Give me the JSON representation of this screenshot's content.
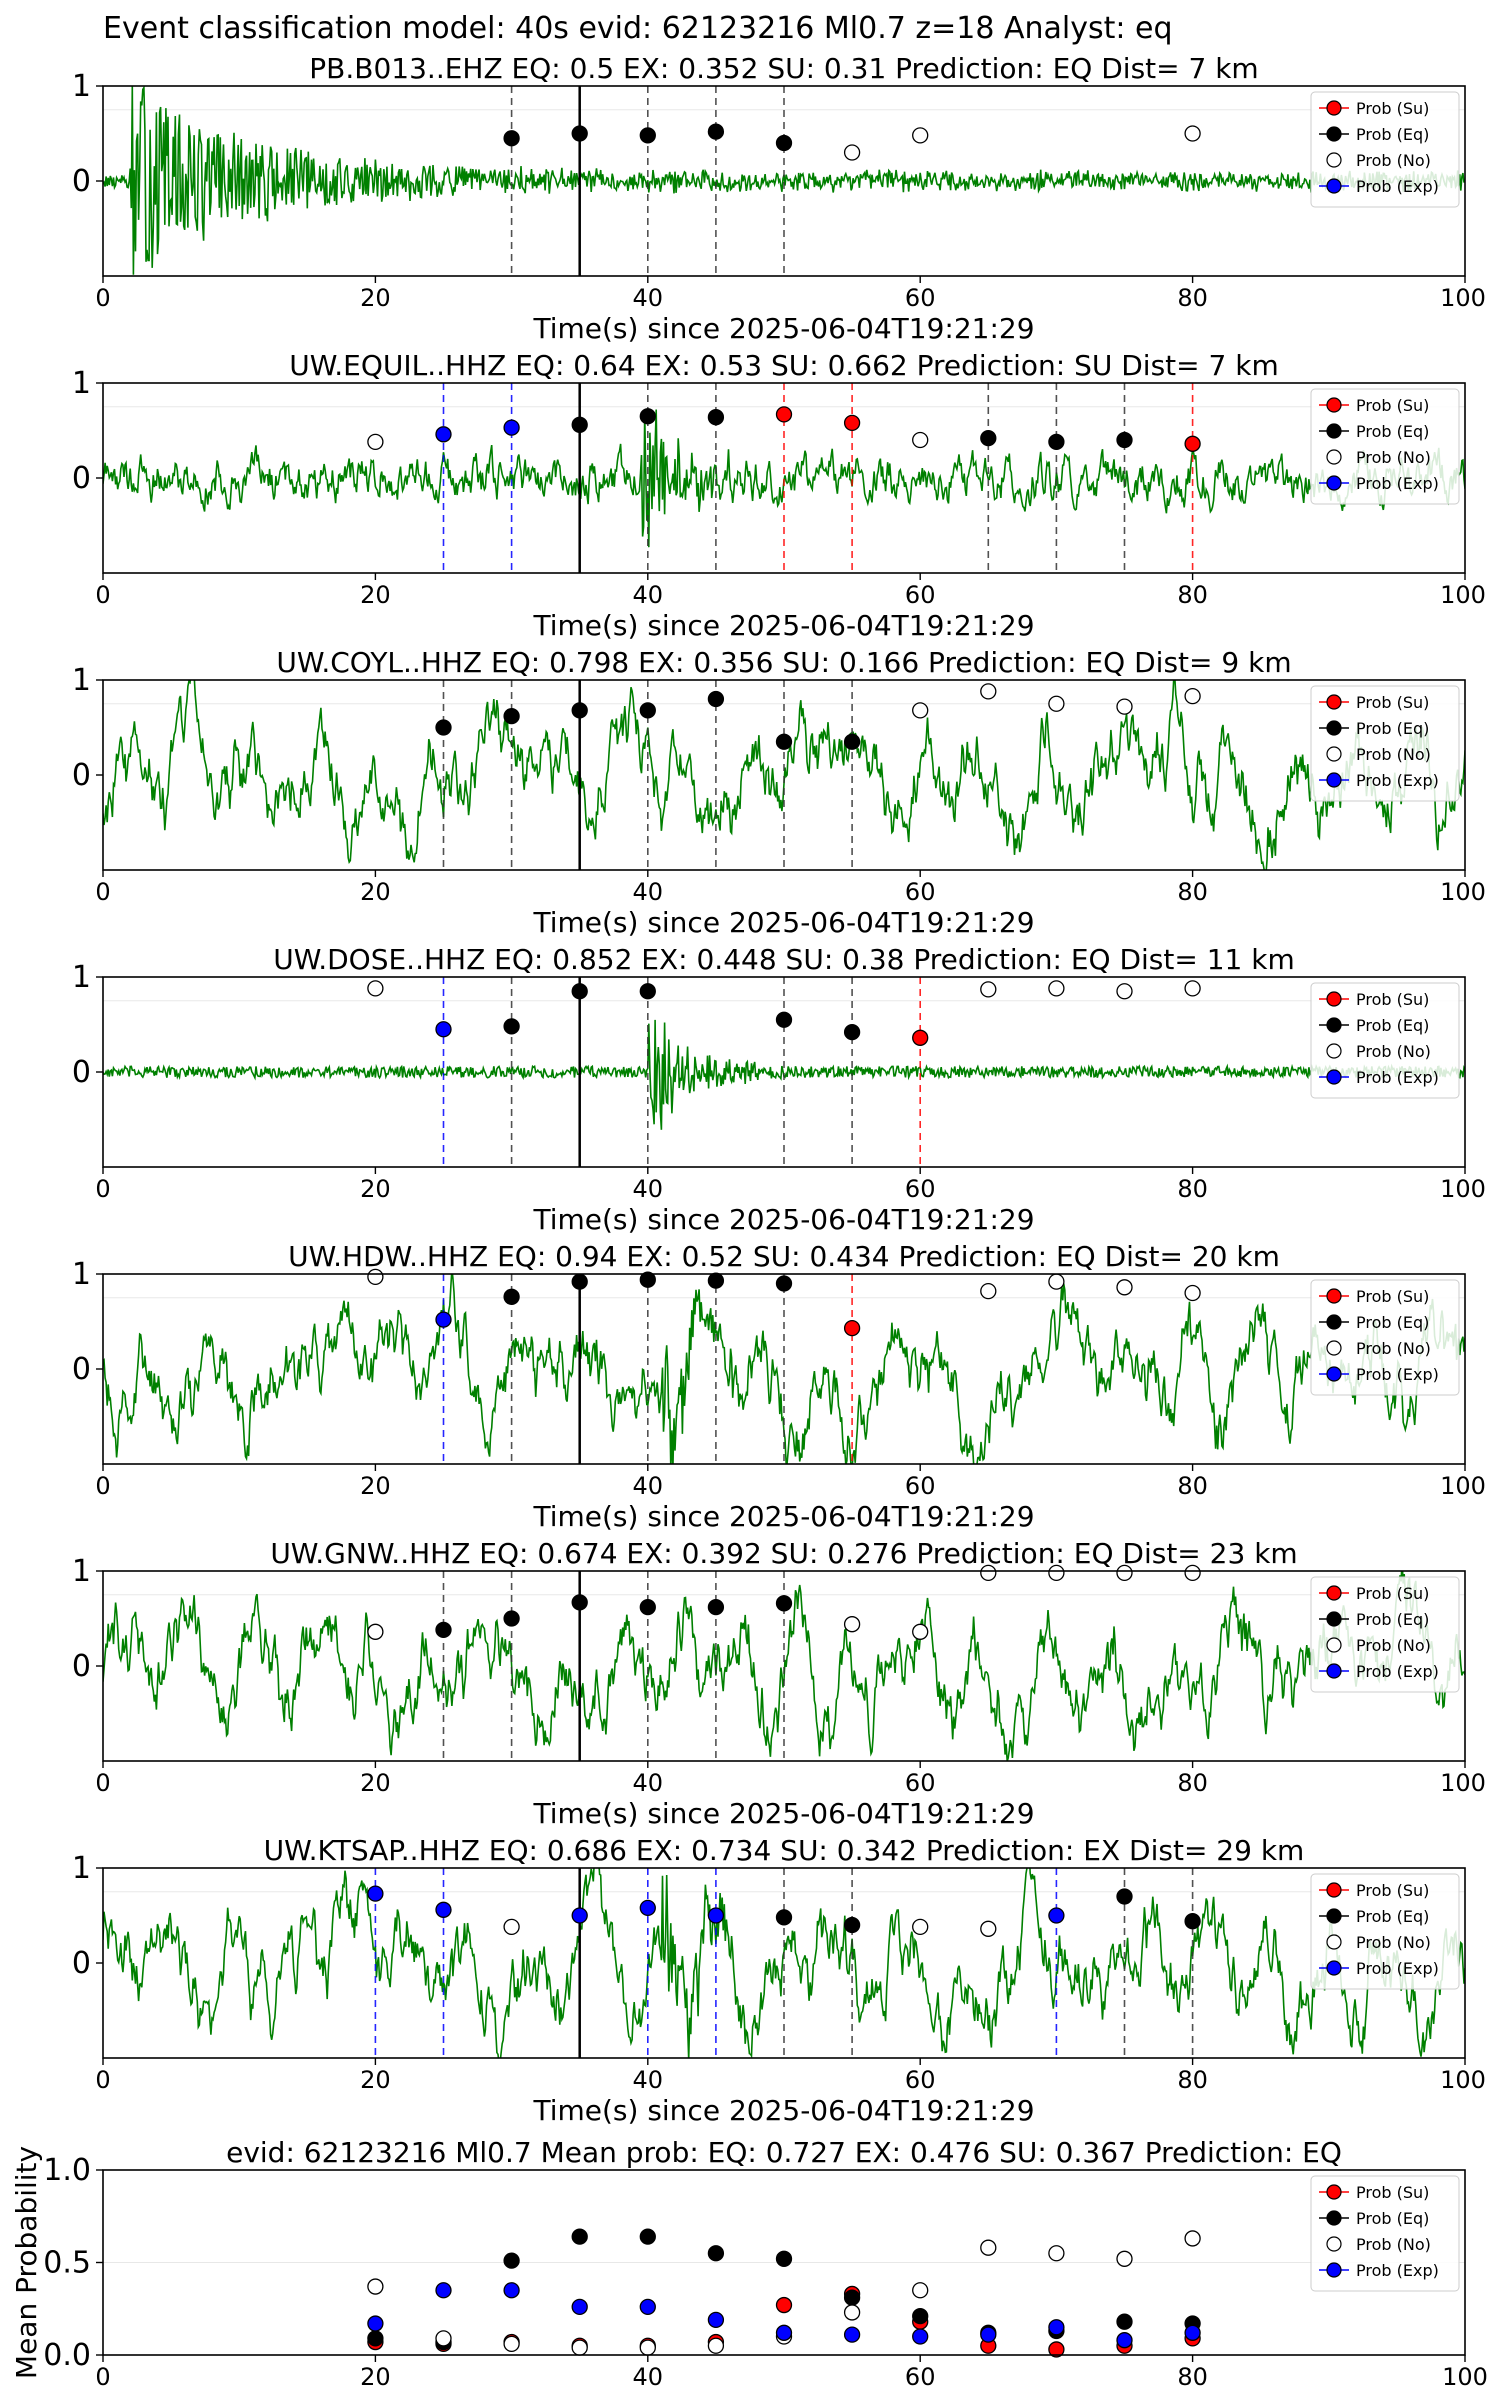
{
  "suptitle": "Event classification model: 40s evid: 62123216 Ml0.7 z=18 Analyst: eq",
  "colors": {
    "waveform": "#008000",
    "su": "#ff0000",
    "eq": "#000000",
    "no": "#ffffff",
    "exp": "#0000ff"
  },
  "legend": {
    "entries": [
      "Prob (Su)",
      "Prob (Eq)",
      "Prob (No)",
      "Prob (Exp)"
    ],
    "placement": "upper-right"
  },
  "chart_data": [
    {
      "type": "scatter",
      "title": "PB.B013..EHZ   EQ: 0.5  EX: 0.352  SU: 0.31   Prediction: EQ    Dist= 7 km",
      "xlabel": "Time(s) since 2025-06-04T19:21:29",
      "xlim": [
        0,
        100
      ],
      "ylim": [
        -1,
        1
      ],
      "xticks": [
        "0",
        "20",
        "40",
        "60",
        "80"
      ],
      "yticks": [
        "1",
        "0"
      ],
      "waveform": "emergent",
      "pick_time": 35,
      "points": [
        {
          "x": 30,
          "y": 0.45,
          "cls": "eq"
        },
        {
          "x": 35,
          "y": 0.5,
          "cls": "eq"
        },
        {
          "x": 40,
          "y": 0.48,
          "cls": "eq"
        },
        {
          "x": 45,
          "y": 0.52,
          "cls": "eq"
        },
        {
          "x": 50,
          "y": 0.4,
          "cls": "eq"
        },
        {
          "x": 55,
          "y": 0.3,
          "cls": "no"
        },
        {
          "x": 60,
          "y": 0.48,
          "cls": "no"
        },
        {
          "x": 80,
          "y": 0.5,
          "cls": "no"
        }
      ]
    },
    {
      "type": "scatter",
      "title": "UW.EQUIL..HHZ   EQ: 0.64  EX: 0.53  SU: 0.662   Prediction: SU    Dist= 7 km",
      "xlabel": "Time(s) since 2025-06-04T19:21:29",
      "xlim": [
        0,
        100
      ],
      "ylim": [
        -1,
        1
      ],
      "xticks": [
        "0",
        "20",
        "40",
        "60",
        "80"
      ],
      "yticks": [
        "1",
        "0"
      ],
      "waveform": "noise",
      "pick_time": 35,
      "points": [
        {
          "x": 20,
          "y": 0.38,
          "cls": "no"
        },
        {
          "x": 25,
          "y": 0.46,
          "cls": "exp"
        },
        {
          "x": 30,
          "y": 0.53,
          "cls": "exp"
        },
        {
          "x": 35,
          "y": 0.56,
          "cls": "eq"
        },
        {
          "x": 40,
          "y": 0.65,
          "cls": "eq"
        },
        {
          "x": 45,
          "y": 0.64,
          "cls": "eq"
        },
        {
          "x": 50,
          "y": 0.67,
          "cls": "su"
        },
        {
          "x": 55,
          "y": 0.58,
          "cls": "su"
        },
        {
          "x": 60,
          "y": 0.4,
          "cls": "no"
        },
        {
          "x": 65,
          "y": 0.42,
          "cls": "eq"
        },
        {
          "x": 70,
          "y": 0.38,
          "cls": "eq"
        },
        {
          "x": 75,
          "y": 0.4,
          "cls": "eq"
        },
        {
          "x": 80,
          "y": 0.36,
          "cls": "su"
        }
      ]
    },
    {
      "type": "scatter",
      "title": "UW.COYL..HHZ   EQ: 0.798  EX: 0.356  SU: 0.166   Prediction: EQ    Dist= 9 km",
      "xlabel": "Time(s) since 2025-06-04T19:21:29",
      "xlim": [
        0,
        100
      ],
      "ylim": [
        -1,
        1
      ],
      "xticks": [
        "0",
        "20",
        "40",
        "60",
        "80"
      ],
      "yticks": [
        "1",
        "0"
      ],
      "waveform": "lowfreq",
      "pick_time": 35,
      "points": [
        {
          "x": 25,
          "y": 0.5,
          "cls": "eq"
        },
        {
          "x": 30,
          "y": 0.62,
          "cls": "eq"
        },
        {
          "x": 35,
          "y": 0.68,
          "cls": "eq"
        },
        {
          "x": 40,
          "y": 0.68,
          "cls": "eq"
        },
        {
          "x": 45,
          "y": 0.8,
          "cls": "eq"
        },
        {
          "x": 50,
          "y": 0.35,
          "cls": "eq"
        },
        {
          "x": 55,
          "y": 0.35,
          "cls": "eq"
        },
        {
          "x": 60,
          "y": 0.68,
          "cls": "no"
        },
        {
          "x": 65,
          "y": 0.88,
          "cls": "no"
        },
        {
          "x": 70,
          "y": 0.75,
          "cls": "no"
        },
        {
          "x": 75,
          "y": 0.72,
          "cls": "no"
        },
        {
          "x": 80,
          "y": 0.83,
          "cls": "no"
        }
      ]
    },
    {
      "type": "scatter",
      "title": "UW.DOSE..HHZ   EQ: 0.852  EX: 0.448  SU: 0.38   Prediction: EQ    Dist= 11 km",
      "xlabel": "Time(s) since 2025-06-04T19:21:29",
      "xlim": [
        0,
        100
      ],
      "ylim": [
        -1,
        1
      ],
      "xticks": [
        "0",
        "20",
        "40",
        "60",
        "80"
      ],
      "yticks": [
        "1",
        "0"
      ],
      "waveform": "quiet_event",
      "pick_time": 35,
      "points": [
        {
          "x": 20,
          "y": 0.88,
          "cls": "no"
        },
        {
          "x": 25,
          "y": 0.45,
          "cls": "exp"
        },
        {
          "x": 30,
          "y": 0.48,
          "cls": "eq"
        },
        {
          "x": 35,
          "y": 0.85,
          "cls": "eq"
        },
        {
          "x": 40,
          "y": 0.85,
          "cls": "eq"
        },
        {
          "x": 50,
          "y": 0.55,
          "cls": "eq"
        },
        {
          "x": 55,
          "y": 0.42,
          "cls": "eq"
        },
        {
          "x": 60,
          "y": 0.36,
          "cls": "su"
        },
        {
          "x": 65,
          "y": 0.87,
          "cls": "no"
        },
        {
          "x": 70,
          "y": 0.88,
          "cls": "no"
        },
        {
          "x": 75,
          "y": 0.85,
          "cls": "no"
        },
        {
          "x": 80,
          "y": 0.88,
          "cls": "no"
        }
      ]
    },
    {
      "type": "scatter",
      "title": "UW.HDW..HHZ   EQ: 0.94  EX: 0.52  SU: 0.434   Prediction: EQ    Dist= 20 km",
      "xlabel": "Time(s) since 2025-06-04T19:21:29",
      "xlim": [
        0,
        100
      ],
      "ylim": [
        -1,
        1
      ],
      "xticks": [
        "0",
        "20",
        "40",
        "60",
        "80"
      ],
      "yticks": [
        "1",
        "0"
      ],
      "waveform": "lowfreq_event",
      "pick_time": 35,
      "points": [
        {
          "x": 20,
          "y": 0.97,
          "cls": "no"
        },
        {
          "x": 25,
          "y": 0.52,
          "cls": "exp"
        },
        {
          "x": 30,
          "y": 0.76,
          "cls": "eq"
        },
        {
          "x": 35,
          "y": 0.92,
          "cls": "eq"
        },
        {
          "x": 40,
          "y": 0.94,
          "cls": "eq"
        },
        {
          "x": 45,
          "y": 0.93,
          "cls": "eq"
        },
        {
          "x": 50,
          "y": 0.9,
          "cls": "eq"
        },
        {
          "x": 55,
          "y": 0.43,
          "cls": "su"
        },
        {
          "x": 65,
          "y": 0.82,
          "cls": "no"
        },
        {
          "x": 70,
          "y": 0.92,
          "cls": "no"
        },
        {
          "x": 75,
          "y": 0.86,
          "cls": "no"
        },
        {
          "x": 80,
          "y": 0.8,
          "cls": "no"
        }
      ]
    },
    {
      "type": "scatter",
      "title": "UW.GNW..HHZ   EQ: 0.674  EX: 0.392  SU: 0.276   Prediction: EQ    Dist= 23 km",
      "xlabel": "Time(s) since 2025-06-04T19:21:29",
      "xlim": [
        0,
        100
      ],
      "ylim": [
        -1,
        1
      ],
      "xticks": [
        "0",
        "20",
        "40",
        "60",
        "80"
      ],
      "yticks": [
        "1",
        "0"
      ],
      "waveform": "lowfreq",
      "pick_time": 35,
      "points": [
        {
          "x": 20,
          "y": 0.36,
          "cls": "no"
        },
        {
          "x": 25,
          "y": 0.38,
          "cls": "eq"
        },
        {
          "x": 30,
          "y": 0.5,
          "cls": "eq"
        },
        {
          "x": 35,
          "y": 0.67,
          "cls": "eq"
        },
        {
          "x": 40,
          "y": 0.62,
          "cls": "eq"
        },
        {
          "x": 45,
          "y": 0.62,
          "cls": "eq"
        },
        {
          "x": 50,
          "y": 0.66,
          "cls": "eq"
        },
        {
          "x": 55,
          "y": 0.44,
          "cls": "no"
        },
        {
          "x": 60,
          "y": 0.36,
          "cls": "no"
        },
        {
          "x": 65,
          "y": 0.98,
          "cls": "no"
        },
        {
          "x": 70,
          "y": 0.98,
          "cls": "no"
        },
        {
          "x": 75,
          "y": 0.98,
          "cls": "no"
        },
        {
          "x": 80,
          "y": 0.98,
          "cls": "no"
        }
      ]
    },
    {
      "type": "scatter",
      "title": "UW.KTSAP..HHZ   EQ: 0.686  EX: 0.734  SU: 0.342   Prediction: EX    Dist= 29 km",
      "xlabel": "Time(s) since 2025-06-04T19:21:29",
      "xlim": [
        0,
        100
      ],
      "ylim": [
        -1,
        1
      ],
      "xticks": [
        "0",
        "20",
        "40",
        "60",
        "80"
      ],
      "yticks": [
        "1",
        "0"
      ],
      "waveform": "lowfreq_event",
      "pick_time": 35,
      "points": [
        {
          "x": 20,
          "y": 0.73,
          "cls": "exp"
        },
        {
          "x": 25,
          "y": 0.56,
          "cls": "exp"
        },
        {
          "x": 30,
          "y": 0.38,
          "cls": "no"
        },
        {
          "x": 35,
          "y": 0.5,
          "cls": "exp"
        },
        {
          "x": 40,
          "y": 0.58,
          "cls": "exp"
        },
        {
          "x": 45,
          "y": 0.5,
          "cls": "exp"
        },
        {
          "x": 50,
          "y": 0.48,
          "cls": "eq"
        },
        {
          "x": 55,
          "y": 0.4,
          "cls": "eq"
        },
        {
          "x": 60,
          "y": 0.38,
          "cls": "no"
        },
        {
          "x": 65,
          "y": 0.36,
          "cls": "no"
        },
        {
          "x": 70,
          "y": 0.5,
          "cls": "exp"
        },
        {
          "x": 75,
          "y": 0.7,
          "cls": "eq"
        },
        {
          "x": 80,
          "y": 0.44,
          "cls": "eq"
        }
      ]
    },
    {
      "type": "scatter",
      "title": "evid: 62123216  Ml0.7   Mean prob:   EQ: 0.727  EX: 0.476  SU: 0.367   Prediction: EQ",
      "xlabel": "",
      "ylabel": "Mean Probability",
      "xlim": [
        0,
        100
      ],
      "ylim": [
        0,
        1
      ],
      "xticks": [
        "0",
        "20",
        "40",
        "60",
        "80",
        "100"
      ],
      "yticks": [
        "1.0",
        "0.5",
        "0.0"
      ],
      "series": [
        {
          "name": "Prob (Su)",
          "cls": "su",
          "x": [
            20,
            25,
            30,
            35,
            40,
            45,
            50,
            55,
            60,
            65,
            70,
            75,
            80
          ],
          "values": [
            0.07,
            0.06,
            0.07,
            0.05,
            0.05,
            0.07,
            0.27,
            0.33,
            0.18,
            0.05,
            0.03,
            0.05,
            0.09
          ]
        },
        {
          "name": "Prob (Eq)",
          "cls": "eq",
          "x": [
            20,
            25,
            30,
            35,
            40,
            45,
            50,
            55,
            60,
            65,
            70,
            75,
            80
          ],
          "values": [
            0.09,
            0.07,
            0.51,
            0.64,
            0.64,
            0.55,
            0.52,
            0.31,
            0.21,
            0.12,
            0.13,
            0.18,
            0.17
          ]
        },
        {
          "name": "Prob (No)",
          "cls": "no",
          "x": [
            20,
            25,
            30,
            35,
            40,
            45,
            50,
            55,
            60,
            65,
            70,
            75,
            80
          ],
          "values": [
            0.37,
            0.09,
            0.06,
            0.04,
            0.04,
            0.05,
            0.1,
            0.23,
            0.35,
            0.58,
            0.55,
            0.52,
            0.63
          ]
        },
        {
          "name": "Prob (Exp)",
          "cls": "exp",
          "x": [
            20,
            25,
            30,
            35,
            40,
            45,
            50,
            55,
            60,
            65,
            70,
            75,
            80
          ],
          "values": [
            0.17,
            0.35,
            0.35,
            0.26,
            0.26,
            0.19,
            0.12,
            0.11,
            0.1,
            0.11,
            0.15,
            0.08,
            0.12
          ]
        }
      ]
    }
  ]
}
